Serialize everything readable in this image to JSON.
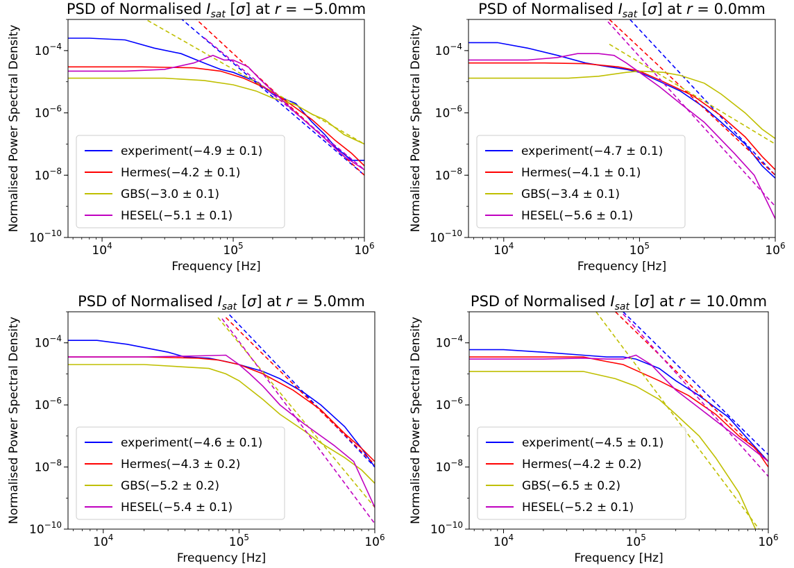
{
  "chart_data": [
    {
      "type": "line",
      "title": "PSD of Normalised I_sat [σ] at r = −5.0mm",
      "title_parts": {
        "lead": "PSD of Normalised ",
        "I": "I",
        "sub": "sat",
        "mid": " [",
        "sigma": "σ",
        "mid2": "] at ",
        "r": "r",
        "eq": " = ",
        "value": "−5.0mm"
      },
      "xlabel": "Frequency [Hz]",
      "ylabel": "Normalised Power Spectral Density",
      "xscale": "log",
      "yscale": "log",
      "xlim": [
        5500,
        1000000
      ],
      "ylim": [
        1e-10,
        0.001
      ],
      "xticks": [
        {
          "value": 10000,
          "label": "10^4"
        },
        {
          "value": 100000,
          "label": "10^5"
        },
        {
          "value": 1000000,
          "label": "10^6"
        }
      ],
      "yticks": [
        {
          "value": 0.0001,
          "label": "10^-4"
        },
        {
          "value": 1e-06,
          "label": "10^-6"
        },
        {
          "value": 1e-08,
          "label": "10^-8"
        },
        {
          "value": 1e-10,
          "label": "10^-10"
        }
      ],
      "legend_position": "lower-left",
      "grid": false,
      "series": [
        {
          "name": "experiment(−4.9 ± 0.1)",
          "color": "#0000ff",
          "x": [
            5500,
            8000,
            15000,
            25000,
            40000,
            60000,
            80000,
            100000,
            150000,
            200000,
            300000,
            400000,
            500000,
            600000,
            800000,
            900000,
            1000000
          ],
          "y": [
            0.00025,
            0.00025,
            0.00022,
            0.00012,
            8e-05,
            4e-05,
            2.5e-05,
            2e-05,
            1e-05,
            4e-06,
            2e-06,
            5e-07,
            2e-07,
            8e-08,
            3e-08,
            3e-08,
            3e-08
          ],
          "fit": {
            "x": [
              30000,
              1000000
            ],
            "y": [
              0.003,
              1e-08
            ]
          }
        },
        {
          "name": "Hermes(−4.2 ± 0.1)",
          "color": "#ff0000",
          "x": [
            5500,
            20000,
            50000,
            80000,
            120000,
            180000,
            250000,
            400000,
            600000,
            800000,
            1000000
          ],
          "y": [
            3e-05,
            3e-05,
            2.8e-05,
            2.2e-05,
            1.3e-05,
            6e-06,
            2.5e-06,
            6e-07,
            1.3e-07,
            5e-08,
            2e-08
          ],
          "fit": {
            "x": [
              50000,
              1000000
            ],
            "y": [
              0.0012,
              1e-08
            ]
          }
        },
        {
          "name": "GBS(−3.0 ± 0.1)",
          "color": "#bfbf00",
          "x": [
            5500,
            10000,
            30000,
            60000,
            100000,
            150000,
            200000,
            300000,
            400000,
            500000,
            700000,
            1000000
          ],
          "y": [
            1.3e-05,
            1.3e-05,
            1.3e-05,
            1.1e-05,
            8e-06,
            5e-06,
            3e-06,
            1.8e-06,
            9e-07,
            6e-07,
            2e-07,
            1e-07
          ],
          "fit": {
            "x": [
              20000,
              1000000
            ],
            "y": [
              0.0012,
              1e-07
            ]
          }
        },
        {
          "name": "HESEL(−5.1 ± 0.1)",
          "color": "#c000c0",
          "x": [
            5500,
            15000,
            30000,
            50000,
            70000,
            85000,
            100000,
            130000,
            160000,
            200000,
            300000,
            500000,
            700000,
            1000000
          ],
          "y": [
            2.2e-05,
            2.2e-05,
            2.5e-05,
            4e-05,
            7e-05,
            5e-05,
            5e-05,
            3e-05,
            1.2e-05,
            5e-06,
            1e-06,
            1.5e-07,
            4e-08,
            1.5e-08
          ],
          "fit": {
            "x": [
              60000,
              1000000
            ],
            "y": [
              0.00026,
              1.5e-08
            ]
          }
        }
      ]
    },
    {
      "type": "line",
      "title": "PSD of Normalised I_sat [σ] at r = 0.0mm",
      "title_parts": {
        "lead": "PSD of Normalised ",
        "I": "I",
        "sub": "sat",
        "mid": " [",
        "sigma": "σ",
        "mid2": "] at ",
        "r": "r",
        "eq": " = ",
        "value": "0.0mm"
      },
      "xlabel": "Frequency [Hz]",
      "ylabel": "Normalised Power Spectral Density",
      "xscale": "log",
      "yscale": "log",
      "xlim": [
        5500,
        1000000
      ],
      "ylim": [
        1e-10,
        0.001
      ],
      "xticks": [
        {
          "value": 10000,
          "label": "10^4"
        },
        {
          "value": 100000,
          "label": "10^5"
        },
        {
          "value": 1000000,
          "label": "10^6"
        }
      ],
      "yticks": [
        {
          "value": 0.0001,
          "label": "10^-4"
        },
        {
          "value": 1e-06,
          "label": "10^-6"
        },
        {
          "value": 1e-08,
          "label": "10^-8"
        },
        {
          "value": 1e-10,
          "label": "10^-10"
        }
      ],
      "legend_position": "lower-left",
      "grid": false,
      "series": [
        {
          "name": "experiment(−4.7 ± 0.1)",
          "color": "#0000ff",
          "x": [
            5500,
            9000,
            15000,
            25000,
            40000,
            60000,
            80000,
            100000,
            150000,
            200000,
            300000,
            400000,
            600000,
            800000,
            1000000
          ],
          "y": [
            0.00018,
            0.00018,
            0.00012,
            7e-05,
            4e-05,
            3e-05,
            2.5e-05,
            2e-05,
            9e-06,
            5e-06,
            1.5e-06,
            5e-07,
            1e-07,
            2e-08,
            8e-09
          ],
          "fit": {
            "x": [
              85000,
              1000000
            ],
            "y": [
              0.001,
              1e-08
            ]
          }
        },
        {
          "name": "Hermes(−4.1 ± 0.1)",
          "color": "#ff0000",
          "x": [
            5500,
            20000,
            40000,
            70000,
            100000,
            150000,
            250000,
            400000,
            600000,
            800000,
            1000000
          ],
          "y": [
            4e-05,
            4e-05,
            3.8e-05,
            3e-05,
            2.2e-05,
            1e-05,
            3.5e-06,
            8e-07,
            1.7e-07,
            4e-08,
            1.5e-08
          ],
          "fit": {
            "x": [
              60000,
              1000000
            ],
            "y": [
              0.001,
              1e-08
            ]
          }
        },
        {
          "name": "GBS(−3.4 ± 0.1)",
          "color": "#bfbf00",
          "x": [
            5500,
            10000,
            30000,
            50000,
            80000,
            100000,
            150000,
            200000,
            300000,
            400000,
            600000,
            800000,
            1000000
          ],
          "y": [
            1.3e-05,
            1.3e-05,
            1.3e-05,
            1.5e-05,
            2e-05,
            2.2e-05,
            2e-05,
            1.6e-05,
            9e-06,
            4e-06,
            1e-06,
            3e-07,
            1.5e-07
          ],
          "fit": {
            "x": [
              60000,
              1000000
            ],
            "y": [
              0.00016,
              1e-07
            ]
          }
        },
        {
          "name": "HESEL(−5.6 ± 0.1)",
          "color": "#c000c0",
          "x": [
            5500,
            15000,
            25000,
            35000,
            50000,
            65000,
            80000,
            100000,
            140000,
            200000,
            300000,
            500000,
            700000,
            1000000
          ],
          "y": [
            5e-05,
            5e-05,
            6e-05,
            8e-05,
            8e-05,
            7e-05,
            4e-05,
            2e-05,
            7e-06,
            2e-06,
            5e-07,
            5e-08,
            1e-08,
            4e-10
          ],
          "fit": {
            "x": [
              50000,
              1000000
            ],
            "y": [
              0.0018,
              1e-09
            ]
          }
        }
      ]
    },
    {
      "type": "line",
      "title": "PSD of Normalised I_sat [σ] at r = 5.0mm",
      "title_parts": {
        "lead": "PSD of Normalised ",
        "I": "I",
        "sub": "sat",
        "mid": " [",
        "sigma": "σ",
        "mid2": "] at ",
        "r": "r",
        "eq": " = ",
        "value": "5.0mm"
      },
      "xlabel": "Frequency [Hz]",
      "ylabel": "Normalised Power Spectral Density",
      "xscale": "log",
      "yscale": "log",
      "xlim": [
        5500,
        1000000
      ],
      "ylim": [
        1e-10,
        0.001
      ],
      "xticks": [
        {
          "value": 10000,
          "label": "10^4"
        },
        {
          "value": 100000,
          "label": "10^5"
        },
        {
          "value": 1000000,
          "label": "10^6"
        }
      ],
      "yticks": [
        {
          "value": 0.0001,
          "label": "10^-4"
        },
        {
          "value": 1e-06,
          "label": "10^-6"
        },
        {
          "value": 1e-08,
          "label": "10^-8"
        },
        {
          "value": 1e-10,
          "label": "10^-10"
        }
      ],
      "legend_position": "lower-left",
      "grid": false,
      "series": [
        {
          "name": "experiment(−4.6 ± 0.1)",
          "color": "#0000ff",
          "x": [
            5500,
            9000,
            15000,
            30000,
            40000,
            60000,
            80000,
            100000,
            150000,
            200000,
            300000,
            400000,
            600000,
            800000,
            1000000
          ],
          "y": [
            0.00012,
            0.00012,
            9e-05,
            5e-05,
            3.5e-05,
            3.2e-05,
            2.5e-05,
            2e-05,
            1.2e-05,
            7e-06,
            2.5e-06,
            1e-06,
            2e-07,
            4e-08,
            1e-08
          ],
          "fit": {
            "x": [
              85000,
              1000000
            ],
            "y": [
              0.0008,
              1e-08
            ]
          }
        },
        {
          "name": "Hermes(−4.3 ± 0.2)",
          "color": "#ff0000",
          "x": [
            5500,
            20000,
            50000,
            70000,
            100000,
            150000,
            250000,
            400000,
            600000,
            800000,
            1000000
          ],
          "y": [
            3.5e-05,
            3.5e-05,
            3.2e-05,
            2.8e-05,
            2e-05,
            1e-05,
            3e-06,
            7e-07,
            1.2e-07,
            4e-08,
            1.5e-08
          ],
          "fit": {
            "x": [
              80000,
              1000000
            ],
            "y": [
              0.00065,
              1.2e-08
            ]
          }
        },
        {
          "name": "GBS(−5.2 ± 0.2)",
          "color": "#bfbf00",
          "x": [
            5500,
            20000,
            60000,
            80000,
            100000,
            150000,
            200000,
            300000,
            400000,
            600000,
            800000,
            1000000
          ],
          "y": [
            2e-05,
            2e-05,
            1.5e-05,
            1e-05,
            6e-06,
            1.5e-06,
            5e-07,
            1.5e-07,
            6e-08,
            2e-08,
            8e-09,
            3e-09
          ],
          "fit": {
            "x": [
              70000,
              1000000
            ],
            "y": [
              0.00065,
              5e-10
            ]
          }
        },
        {
          "name": "HESEL(−5.4 ± 0.1)",
          "color": "#c000c0",
          "x": [
            5500,
            20000,
            50000,
            80000,
            100000,
            120000,
            150000,
            200000,
            300000,
            500000,
            700000,
            1000000
          ],
          "y": [
            3.5e-05,
            3.5e-05,
            3.8e-05,
            4e-05,
            2e-05,
            1e-05,
            4e-06,
            1e-06,
            2.5e-07,
            5e-08,
            1.5e-08,
            5e-10
          ],
          "fit": {
            "x": [
              75000,
              1000000
            ],
            "y": [
              0.0006,
              1.5e-10
            ]
          }
        }
      ]
    },
    {
      "type": "line",
      "title": "PSD of Normalised I_sat [σ] at r = 10.0mm",
      "title_parts": {
        "lead": "PSD of Normalised ",
        "I": "I",
        "sub": "sat",
        "mid": " [",
        "sigma": "σ",
        "mid2": "] at ",
        "r": "r",
        "eq": " = ",
        "value": "10.0mm"
      },
      "xlabel": "Frequency [Hz]",
      "ylabel": "Normalised Power Spectral Density",
      "xscale": "log",
      "yscale": "log",
      "xlim": [
        5500,
        1000000
      ],
      "ylim": [
        1e-10,
        0.001
      ],
      "xticks": [
        {
          "value": 10000,
          "label": "10^4"
        },
        {
          "value": 100000,
          "label": "10^5"
        },
        {
          "value": 1000000,
          "label": "10^6"
        }
      ],
      "yticks": [
        {
          "value": 0.0001,
          "label": "10^-4"
        },
        {
          "value": 1e-06,
          "label": "10^-6"
        },
        {
          "value": 1e-08,
          "label": "10^-8"
        },
        {
          "value": 1e-10,
          "label": "10^-10"
        }
      ],
      "legend_position": "lower-left",
      "grid": false,
      "series": [
        {
          "name": "experiment(−4.5 ± 0.1)",
          "color": "#0000ff",
          "x": [
            5500,
            10000,
            20000,
            40000,
            60000,
            80000,
            100000,
            150000,
            200000,
            300000,
            500000,
            700000,
            1000000
          ],
          "y": [
            6e-05,
            6e-05,
            5e-05,
            4e-05,
            3.5e-05,
            3.5e-05,
            3e-05,
            1.5e-05,
            6e-06,
            2e-06,
            4e-07,
            8e-08,
            1.5e-08
          ],
          "fit": {
            "x": [
              80000,
              1000000
            ],
            "y": [
              0.001,
              2.5e-08
            ]
          }
        },
        {
          "name": "Hermes(−4.2 ± 0.2)",
          "color": "#ff0000",
          "x": [
            5500,
            20000,
            40000,
            60000,
            80000,
            100000,
            150000,
            250000,
            400000,
            600000,
            800000,
            1000000
          ],
          "y": [
            3.5e-05,
            3.5e-05,
            3.5e-05,
            2.5e-05,
            2e-05,
            1.3e-05,
            6e-06,
            2e-06,
            5e-07,
            1e-07,
            4e-08,
            1e-08
          ],
          "fit": {
            "x": [
              70000,
              1000000
            ],
            "y": [
              0.001,
              1.5e-08
            ]
          }
        },
        {
          "name": "GBS(−6.5 ± 0.2)",
          "color": "#bfbf00",
          "x": [
            5500,
            15000,
            40000,
            70000,
            100000,
            150000,
            200000,
            300000,
            400000,
            600000,
            800000
          ],
          "y": [
            1.2e-05,
            1.2e-05,
            1.2e-05,
            7e-06,
            4e-06,
            1.5e-06,
            5e-07,
            1e-07,
            2e-08,
            1.5e-09,
            1e-10
          ],
          "fit": {
            "x": [
              50000,
              1000000
            ],
            "y": [
              0.001,
              4e-11
            ]
          }
        },
        {
          "name": "HESEL(−5.2 ± 0.1)",
          "color": "#c000c0",
          "x": [
            5500,
            20000,
            40000,
            60000,
            80000,
            100000,
            130000,
            160000,
            200000,
            300000,
            500000,
            700000,
            1000000
          ],
          "y": [
            3e-05,
            3e-05,
            3.2e-05,
            3e-05,
            3e-05,
            4e-05,
            2e-05,
            8e-06,
            3e-06,
            8e-07,
            1.5e-07,
            5e-08,
            1.5e-08
          ],
          "fit": {
            "x": [
              80000,
              1000000
            ],
            "y": [
              0.00085,
              5e-09
            ]
          }
        }
      ]
    }
  ]
}
